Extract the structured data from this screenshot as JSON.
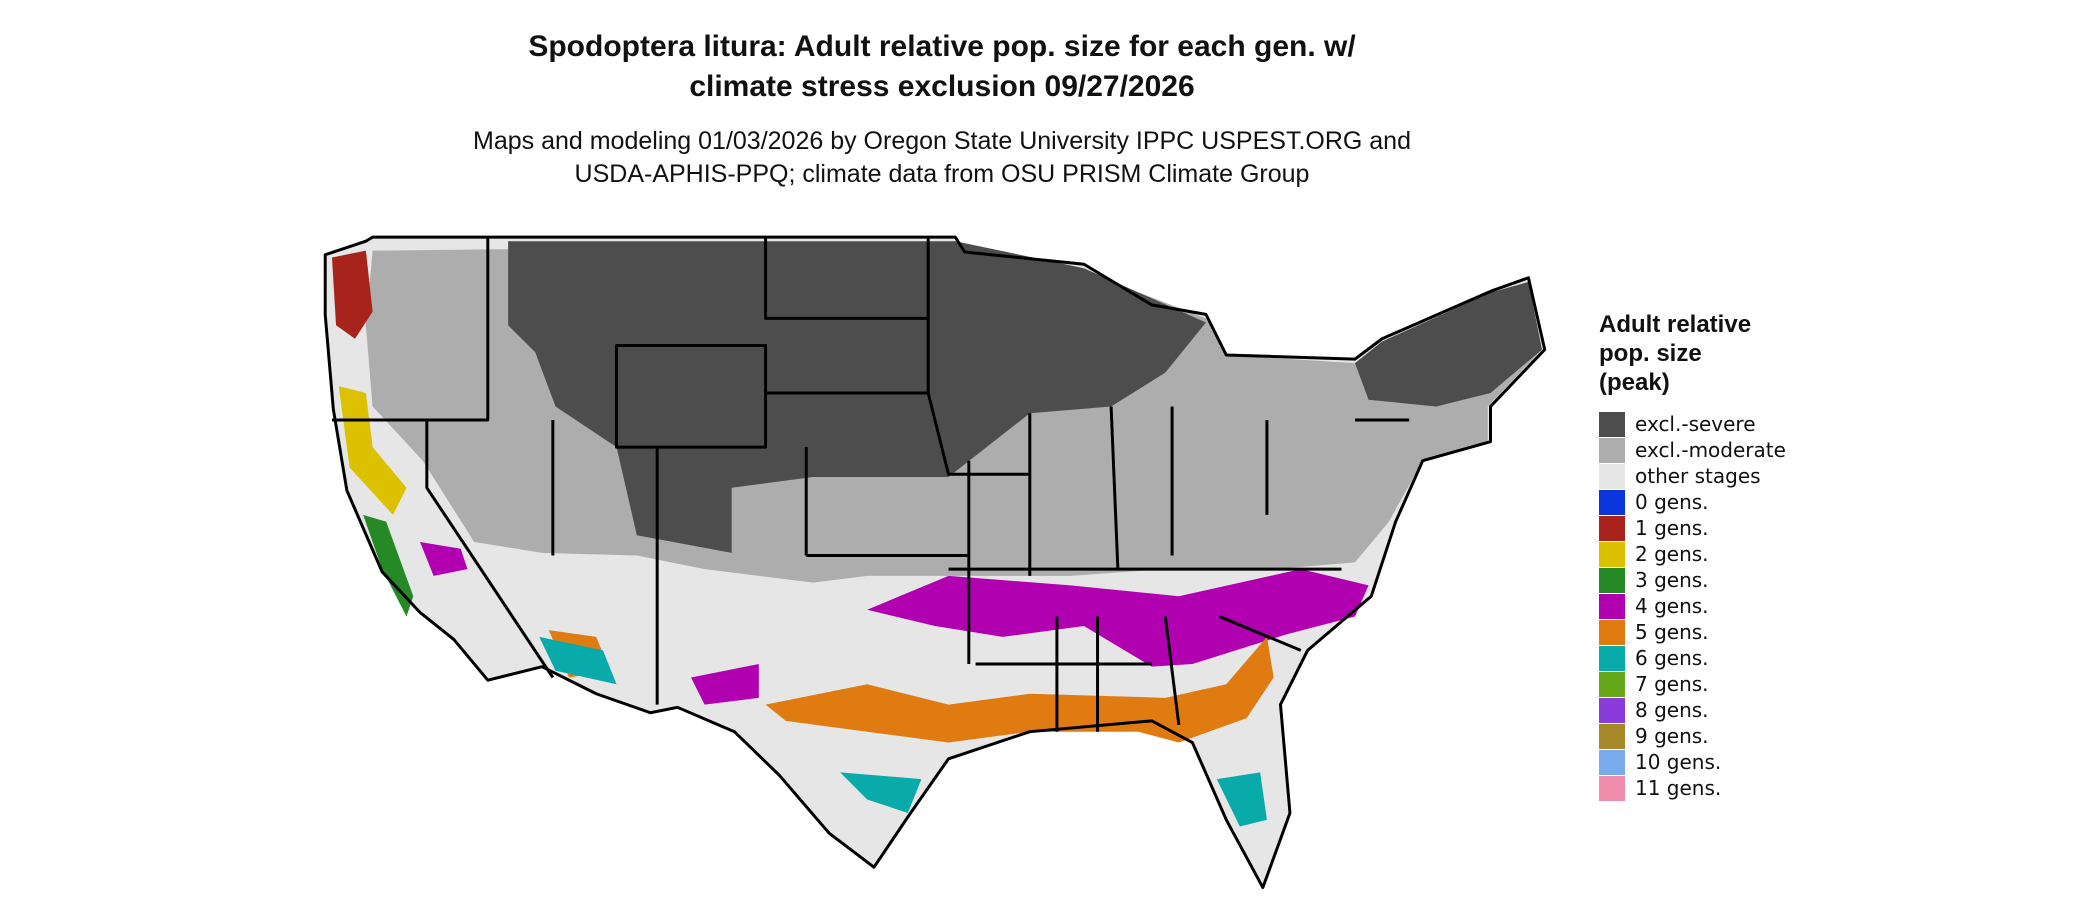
{
  "title": [
    "Spodoptera litura: Adult relative pop. size for each gen. w/",
    "climate stress exclusion 09/27/2026"
  ],
  "subtitle": [
    "Maps and modeling 01/03/2026 by Oregon State University IPPC USPEST.ORG and",
    "USDA-APHIS-PPQ; climate data from OSU PRISM Climate Group"
  ],
  "legend": {
    "title": [
      "Adult relative",
      "pop. size",
      "(peak)"
    ],
    "items": [
      {
        "label": "excl.-severe",
        "color": "#4d4d4d"
      },
      {
        "label": "excl.-moderate",
        "color": "#adadad"
      },
      {
        "label": "other stages",
        "color": "#e6e6e6"
      },
      {
        "label": "0 gens.",
        "color": "#0a35dc"
      },
      {
        "label": "1 gens.",
        "color": "#a8231b"
      },
      {
        "label": "2 gens.",
        "color": "#dcc100"
      },
      {
        "label": "3 gens.",
        "color": "#258a25"
      },
      {
        "label": "4 gens.",
        "color": "#b000b0"
      },
      {
        "label": "5 gens.",
        "color": "#e07b12"
      },
      {
        "label": "6 gens.",
        "color": "#08aaaa"
      },
      {
        "label": "7 gens.",
        "color": "#66a81a"
      },
      {
        "label": "8 gens.",
        "color": "#8a3cdb"
      },
      {
        "label": "9 gens.",
        "color": "#a8892a"
      },
      {
        "label": "10 gens.",
        "color": "#78aaee"
      },
      {
        "label": "11 gens.",
        "color": "#ee8eac"
      }
    ]
  }
}
